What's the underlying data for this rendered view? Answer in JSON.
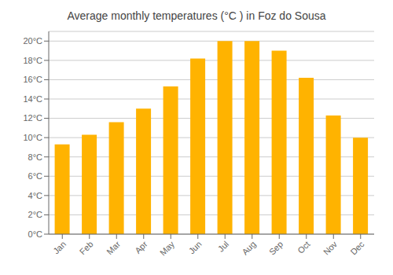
{
  "chart_data": {
    "type": "bar",
    "title": "Average monthly temperatures (°C ) in Foz do Sousa",
    "categories": [
      "Jan",
      "Feb",
      "Mar",
      "Apr",
      "May",
      "Jun",
      "Jul",
      "Aug",
      "Sep",
      "Oct",
      "Nov",
      "Dec"
    ],
    "values": [
      9.3,
      10.3,
      11.6,
      13.0,
      15.3,
      18.2,
      20.0,
      20.0,
      19.0,
      16.2,
      12.3,
      10.0
    ],
    "color": "#FFB300",
    "ylim": [
      0,
      21
    ],
    "yticks": [
      {
        "value": 0,
        "label": "0°C"
      },
      {
        "value": 2,
        "label": "2°C"
      },
      {
        "value": 4,
        "label": "4°C"
      },
      {
        "value": 6,
        "label": "6°C"
      },
      {
        "value": 8,
        "label": "8°C"
      },
      {
        "value": 10,
        "label": "10°C"
      },
      {
        "value": 12,
        "label": "12°C"
      },
      {
        "value": 14,
        "label": "14°C"
      },
      {
        "value": 16,
        "label": "16°C"
      },
      {
        "value": 18,
        "label": "18°C"
      },
      {
        "value": 20,
        "label": "20°C"
      }
    ],
    "grid": true
  }
}
